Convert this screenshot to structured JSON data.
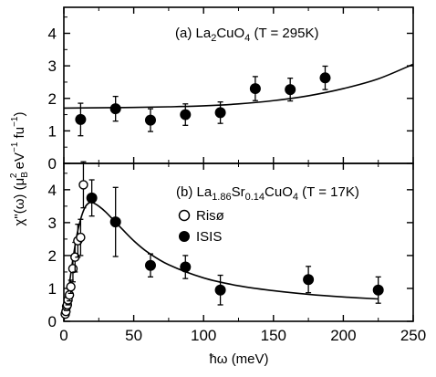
{
  "chart_data": [
    {
      "type": "scatter",
      "panel": "top",
      "title": "(a) La2CuO4 (T = 295K)",
      "title_parts": {
        "prefix": "(a) La",
        "sub1": "2",
        "mid": "CuO",
        "sub2": "4",
        "suffix": " (T = 295K)"
      },
      "xlim": [
        0,
        250
      ],
      "ylim": [
        0,
        4.8
      ],
      "yticks": [
        0,
        1,
        2,
        3,
        4
      ],
      "grid": false,
      "series": [
        {
          "marker": "filled-circle",
          "x": [
            12,
            37,
            62,
            87,
            112,
            137,
            162,
            187
          ],
          "y": [
            1.35,
            1.68,
            1.33,
            1.5,
            1.56,
            2.3,
            2.27,
            2.63
          ],
          "err": [
            0.5,
            0.38,
            0.35,
            0.33,
            0.33,
            0.37,
            0.35,
            0.36
          ]
        }
      ],
      "fit_curve": {
        "x": [
          0,
          25,
          50,
          75,
          100,
          125,
          150,
          175,
          200,
          225,
          250
        ],
        "y": [
          1.7,
          1.71,
          1.72,
          1.74,
          1.77,
          1.83,
          1.93,
          2.08,
          2.3,
          2.6,
          3.05
        ]
      }
    },
    {
      "type": "scatter",
      "panel": "bottom",
      "title": "(b) La1.86Sr0.14CuO4 (T = 17K)",
      "title_parts": {
        "p1": "(b) La",
        "s1": "1.86",
        "p2": "Sr",
        "s2": "0.14",
        "p3": "CuO",
        "s3": "4",
        "p4": " (T = 17K)"
      },
      "xlim": [
        0,
        250
      ],
      "ylim": [
        0,
        4.8
      ],
      "yticks": [
        0,
        1,
        2,
        3,
        4
      ],
      "xticks": [
        0,
        50,
        100,
        150,
        200,
        250
      ],
      "xlabel": "ħω (meV)",
      "grid": false,
      "legend_position": "upper-middle",
      "series": [
        {
          "name": "Risø",
          "marker": "open-circle",
          "x": [
            1.0,
            1.5,
            2.0,
            2.5,
            3.0,
            4.0,
            5.0,
            6.5,
            8.0,
            10.0,
            12.0,
            14.0
          ],
          "y": [
            0.22,
            0.3,
            0.45,
            0.5,
            0.65,
            0.8,
            1.05,
            1.6,
            1.95,
            2.45,
            2.55,
            4.15
          ],
          "err": [
            0.08,
            0.1,
            0.12,
            0.12,
            0.15,
            0.18,
            0.2,
            0.4,
            0.45,
            0.5,
            0.55,
            0.7
          ]
        },
        {
          "name": "ISIS",
          "marker": "filled-circle",
          "x": [
            20,
            37,
            62,
            87,
            112,
            175,
            225
          ],
          "y": [
            3.75,
            3.02,
            1.7,
            1.65,
            0.95,
            1.27,
            0.95
          ],
          "err": [
            0.55,
            1.05,
            0.35,
            0.35,
            0.45,
            0.4,
            0.4
          ]
        }
      ],
      "fit_curve": {
        "x": [
          0,
          3,
          6,
          9,
          12,
          15,
          18,
          21,
          25,
          30,
          40,
          50,
          60,
          75,
          100,
          125,
          150,
          175,
          200,
          225
        ],
        "y": [
          0,
          0.85,
          1.75,
          2.55,
          3.1,
          3.45,
          3.6,
          3.6,
          3.5,
          3.32,
          2.88,
          2.45,
          2.1,
          1.72,
          1.32,
          1.08,
          0.93,
          0.82,
          0.74,
          0.68
        ]
      }
    }
  ],
  "shared": {
    "ylabel": "χ\"(ω) (μB² eV⁻¹ fu⁻¹)",
    "ylabel_parts": {
      "p1": "χ\"(ω) (μ",
      "sub": "B",
      "sup": "2",
      "p2": " eV",
      "sup2": "−1",
      "p3": " fu",
      "sup3": "−1",
      "p4": ")"
    },
    "colors": {
      "ink": "#000000",
      "open_fill": "#ffffff"
    }
  }
}
